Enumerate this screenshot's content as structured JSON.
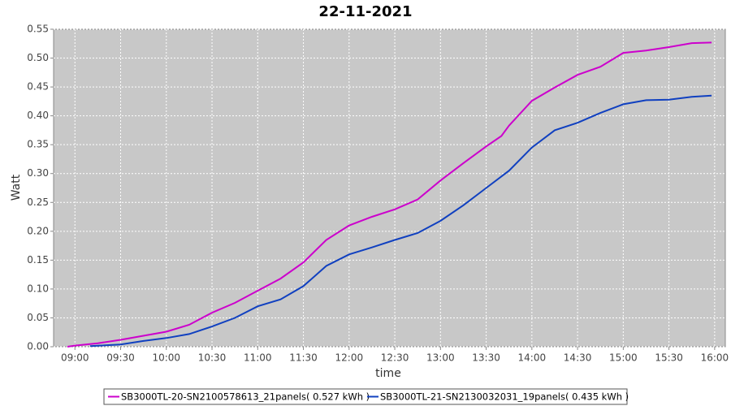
{
  "chart_data": {
    "type": "line",
    "title": "22-11-2021",
    "x_label": "time",
    "y_label": "Watt",
    "xlim": [
      "08:46",
      "16:07"
    ],
    "xticks": [
      "09:00",
      "09:30",
      "10:00",
      "10:30",
      "11:00",
      "11:30",
      "12:00",
      "12:30",
      "13:00",
      "13:30",
      "14:00",
      "14:30",
      "15:00",
      "15:30",
      "16:00"
    ],
    "ylim": [
      0,
      0.55
    ],
    "yticks": [
      {
        "value": 0,
        "label": "0.00"
      },
      {
        "value": 0.05,
        "label": "0.05"
      },
      {
        "value": 0.1,
        "label": "0.10"
      },
      {
        "value": 0.15,
        "label": "0.15"
      },
      {
        "value": 0.2,
        "label": "0.20"
      },
      {
        "value": 0.25,
        "label": "0.25"
      },
      {
        "value": 0.3,
        "label": "0.30"
      },
      {
        "value": 0.35,
        "label": "0.35"
      },
      {
        "value": 0.4,
        "label": "0.40"
      },
      {
        "value": 0.45,
        "label": "0.45"
      },
      {
        "value": 0.5,
        "label": "0.50"
      },
      {
        "value": 0.55,
        "label": "0.55"
      }
    ],
    "grid": true,
    "series": [
      {
        "name": "SB3000TL-20-SN2100578613_21panels( 0.527 kWh )",
        "color": "#cc00cc",
        "x": [
          "08:55",
          "09:00",
          "09:15",
          "09:30",
          "09:45",
          "10:00",
          "10:15",
          "10:30",
          "10:45",
          "11:00",
          "11:15",
          "11:30",
          "11:45",
          "12:00",
          "12:15",
          "12:30",
          "12:45",
          "13:00",
          "13:15",
          "13:30",
          "13:40",
          "13:45",
          "14:00",
          "14:15",
          "14:30",
          "14:45",
          "15:00",
          "15:15",
          "15:30",
          "15:45",
          "15:58"
        ],
        "values": [
          0.0,
          0.002,
          0.006,
          0.012,
          0.019,
          0.026,
          0.038,
          0.059,
          0.076,
          0.097,
          0.118,
          0.146,
          0.185,
          0.21,
          0.225,
          0.238,
          0.255,
          0.288,
          0.318,
          0.347,
          0.365,
          0.383,
          0.426,
          0.449,
          0.471,
          0.485,
          0.509,
          0.513,
          0.519,
          0.526,
          0.527
        ]
      },
      {
        "name": "SB3000TL-21-SN2130032031_19panels( 0.435 kWh )",
        "color": "#1040c0",
        "x": [
          "09:10",
          "09:30",
          "09:45",
          "10:00",
          "10:15",
          "10:30",
          "10:45",
          "11:00",
          "11:15",
          "11:30",
          "11:45",
          "12:00",
          "12:15",
          "12:30",
          "12:45",
          "13:00",
          "13:15",
          "13:30",
          "13:45",
          "14:00",
          "14:15",
          "14:30",
          "14:45",
          "15:00",
          "15:15",
          "15:30",
          "15:45",
          "15:58"
        ],
        "values": [
          0.001,
          0.004,
          0.01,
          0.015,
          0.022,
          0.035,
          0.05,
          0.07,
          0.082,
          0.105,
          0.14,
          0.16,
          0.172,
          0.185,
          0.197,
          0.218,
          0.245,
          0.275,
          0.305,
          0.345,
          0.375,
          0.388,
          0.405,
          0.42,
          0.427,
          0.428,
          0.433,
          0.435
        ]
      }
    ]
  }
}
